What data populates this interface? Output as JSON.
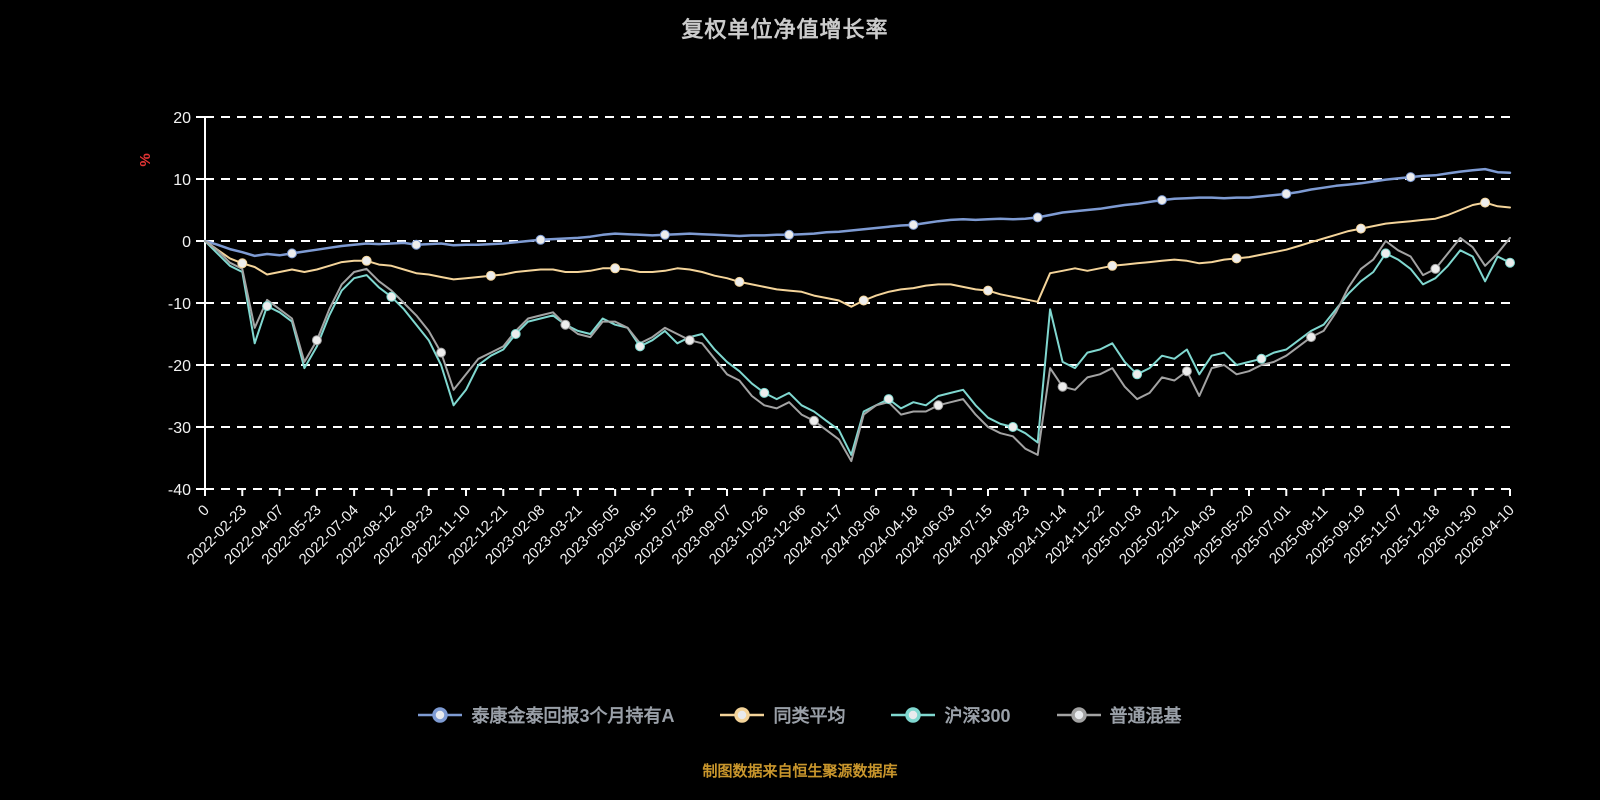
{
  "title": "复权单位净值增长率",
  "footer_note": "制图数据来自恒生聚源数据库",
  "chart_data": {
    "type": "line",
    "title": "复权单位净值增长率",
    "xlabel": "",
    "ylabel": "%",
    "ylabel_color": "#e33434",
    "ylim": [
      -40,
      20
    ],
    "yticks": [
      20,
      10,
      0,
      -10,
      -20,
      -30,
      -40
    ],
    "grid": true,
    "grid_style": "dashed",
    "legend_position": "bottom",
    "background": "#000000",
    "x_tick_labels": [
      "0",
      "2022-02-23",
      "2022-04-07",
      "2022-05-23",
      "2022-07-04",
      "2022-08-12",
      "2022-09-23",
      "2022-11-10",
      "2022-12-21",
      "2023-02-08",
      "2023-03-21",
      "2023-05-05",
      "2023-06-15",
      "2023-07-28",
      "2023-09-07",
      "2023-10-26",
      "2023-12-06",
      "2024-01-17",
      "2024-03-06",
      "2024-04-18",
      "2024-06-03",
      "2024-07-15",
      "2024-08-23",
      "2024-10-14",
      "2024-11-22",
      "2025-01-03",
      "2025-02-21",
      "2025-04-03",
      "2025-05-20",
      "2025-07-01",
      "2025-08-11",
      "2025-09-19",
      "2025-11-07",
      "2025-12-18",
      "2026-01-30",
      "2026-04-10"
    ],
    "series": [
      {
        "name": "泰康金泰回报3个月持有A",
        "color": "#7e9bd3",
        "values": [
          0,
          -0.6,
          -1.3,
          -1.8,
          -2.4,
          -2.1,
          -2.3,
          -2.0,
          -1.7,
          -1.4,
          -1.1,
          -0.8,
          -0.6,
          -0.4,
          -0.5,
          -0.4,
          -0.3,
          -0.6,
          -0.5,
          -0.4,
          -0.7,
          -0.6,
          -0.6,
          -0.5,
          -0.4,
          -0.2,
          0.0,
          0.2,
          0.3,
          0.4,
          0.5,
          0.7,
          1.0,
          1.2,
          1.1,
          1.0,
          0.9,
          1.0,
          1.1,
          1.2,
          1.1,
          1.0,
          0.9,
          0.8,
          0.9,
          0.9,
          1.0,
          1.0,
          1.1,
          1.2,
          1.4,
          1.5,
          1.7,
          1.9,
          2.1,
          2.3,
          2.5,
          2.6,
          2.9,
          3.2,
          3.4,
          3.5,
          3.4,
          3.5,
          3.6,
          3.5,
          3.6,
          3.8,
          4.2,
          4.6,
          4.8,
          5.0,
          5.2,
          5.5,
          5.8,
          6.0,
          6.3,
          6.6,
          6.8,
          6.9,
          7.0,
          7.0,
          6.9,
          7.0,
          7.0,
          7.2,
          7.4,
          7.6,
          7.9,
          8.3,
          8.6,
          8.9,
          9.1,
          9.3,
          9.6,
          9.9,
          10.1,
          10.3,
          10.5,
          10.6,
          10.9,
          11.2,
          11.4,
          11.6,
          11.1,
          11.0
        ]
      },
      {
        "name": "同类平均",
        "color": "#f4d49a",
        "values": [
          0,
          -1.4,
          -2.8,
          -3.6,
          -4.2,
          -5.4,
          -5.0,
          -4.6,
          -5.0,
          -4.6,
          -4.0,
          -3.4,
          -3.2,
          -3.2,
          -3.8,
          -4.0,
          -4.6,
          -5.2,
          -5.4,
          -5.8,
          -6.2,
          -6.0,
          -5.8,
          -5.6,
          -5.4,
          -5.0,
          -4.8,
          -4.6,
          -4.6,
          -5.0,
          -5.0,
          -4.8,
          -4.4,
          -4.4,
          -4.6,
          -5.0,
          -5.0,
          -4.8,
          -4.4,
          -4.6,
          -5.0,
          -5.6,
          -6.0,
          -6.6,
          -7.0,
          -7.4,
          -7.8,
          -8.0,
          -8.2,
          -8.8,
          -9.2,
          -9.6,
          -10.6,
          -9.6,
          -8.8,
          -8.2,
          -7.8,
          -7.6,
          -7.2,
          -7.0,
          -7.0,
          -7.4,
          -7.8,
          -8.0,
          -8.6,
          -9.0,
          -9.4,
          -9.8,
          -5.2,
          -4.8,
          -4.4,
          -4.8,
          -4.4,
          -4.0,
          -3.8,
          -3.6,
          -3.4,
          -3.2,
          -3.0,
          -3.2,
          -3.6,
          -3.4,
          -3.0,
          -2.8,
          -2.6,
          -2.2,
          -1.8,
          -1.4,
          -0.8,
          -0.2,
          0.4,
          1.0,
          1.6,
          2.0,
          2.4,
          2.8,
          3.0,
          3.2,
          3.4,
          3.6,
          4.2,
          5.0,
          5.8,
          6.2,
          5.6,
          5.4
        ]
      },
      {
        "name": "沪深300",
        "color": "#80d8d0",
        "values": [
          0,
          -2.0,
          -4.0,
          -5.0,
          -16.5,
          -10.5,
          -11.5,
          -13.0,
          -20.5,
          -17.0,
          -12.0,
          -8.0,
          -6.0,
          -5.5,
          -7.5,
          -9.0,
          -11.0,
          -13.5,
          -16.0,
          -20.0,
          -26.5,
          -24.0,
          -20.0,
          -18.5,
          -17.5,
          -15.0,
          -13.0,
          -12.5,
          -12.0,
          -13.5,
          -14.5,
          -15.0,
          -12.5,
          -13.5,
          -14.0,
          -17.0,
          -16.0,
          -14.5,
          -16.5,
          -15.5,
          -15.0,
          -17.5,
          -19.5,
          -21.0,
          -23.0,
          -24.5,
          -25.5,
          -24.5,
          -26.5,
          -27.5,
          -29.0,
          -30.5,
          -34.5,
          -27.5,
          -26.5,
          -25.5,
          -27.0,
          -26.0,
          -26.5,
          -25.0,
          -24.5,
          -24.0,
          -26.5,
          -28.5,
          -29.5,
          -30.0,
          -31.0,
          -32.5,
          -11.0,
          -19.5,
          -20.5,
          -18.0,
          -17.5,
          -16.5,
          -19.5,
          -21.5,
          -20.5,
          -18.5,
          -19.0,
          -17.5,
          -21.5,
          -18.5,
          -18.0,
          -20.0,
          -19.5,
          -19.0,
          -18.0,
          -17.5,
          -16.0,
          -14.5,
          -13.5,
          -11.0,
          -8.5,
          -6.5,
          -5.0,
          -2.0,
          -3.0,
          -4.5,
          -7.0,
          -6.0,
          -4.0,
          -1.5,
          -2.5,
          -6.5,
          -2.5,
          -3.5
        ]
      },
      {
        "name": "普通混基",
        "color": "#a3a3a3",
        "values": [
          0,
          -1.5,
          -3.5,
          -4.5,
          -14.0,
          -9.5,
          -11.0,
          -12.5,
          -19.5,
          -16.0,
          -11.0,
          -7.0,
          -5.0,
          -4.5,
          -6.5,
          -8.0,
          -10.0,
          -12.0,
          -14.5,
          -18.0,
          -24.0,
          -21.5,
          -19.0,
          -18.0,
          -17.0,
          -14.5,
          -12.5,
          -12.0,
          -11.5,
          -13.5,
          -15.0,
          -15.5,
          -13.0,
          -13.0,
          -14.0,
          -16.5,
          -15.5,
          -14.0,
          -15.0,
          -16.0,
          -16.5,
          -19.0,
          -21.5,
          -22.5,
          -25.0,
          -26.5,
          -27.0,
          -26.0,
          -28.0,
          -29.0,
          -30.5,
          -32.0,
          -35.5,
          -28.0,
          -26.5,
          -26.0,
          -28.0,
          -27.5,
          -27.5,
          -26.5,
          -26.0,
          -25.5,
          -28.0,
          -30.0,
          -31.0,
          -31.5,
          -33.5,
          -34.5,
          -20.5,
          -23.5,
          -24.0,
          -22.0,
          -21.5,
          -20.5,
          -23.5,
          -25.5,
          -24.5,
          -22.0,
          -22.5,
          -21.0,
          -25.0,
          -20.5,
          -20.0,
          -21.5,
          -21.0,
          -20.0,
          -19.5,
          -18.5,
          -17.0,
          -15.5,
          -14.5,
          -11.5,
          -7.5,
          -4.5,
          -3.0,
          0.0,
          -1.5,
          -2.5,
          -5.5,
          -4.5,
          -2.0,
          0.5,
          -1.0,
          -4.0,
          -2.0,
          0.5
        ]
      }
    ]
  }
}
